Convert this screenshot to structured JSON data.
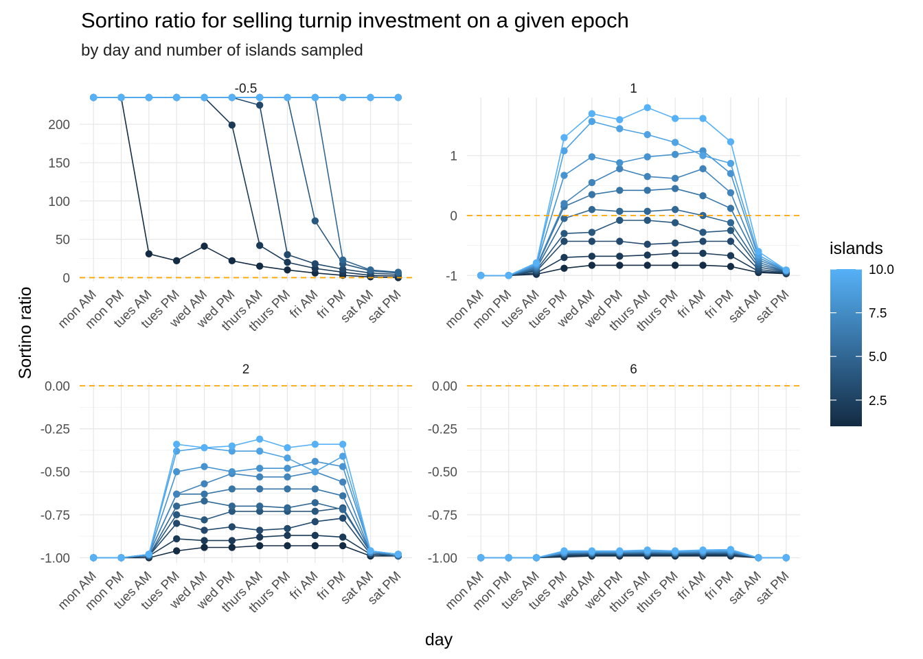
{
  "title": "Sortino ratio for selling turnip investment on a given epoch",
  "subtitle": "by day and number of islands sampled",
  "ylabel": "Sortino ratio",
  "xlabel": "day",
  "legend": {
    "title": "islands",
    "ticks": [
      "10.0",
      "7.5",
      "5.0",
      "2.5"
    ],
    "tick_values": [
      10,
      7.5,
      5,
      2.5
    ],
    "range": [
      1,
      10
    ],
    "color_low": "#132B43",
    "color_high": "#56B1F7",
    "placement": "right"
  },
  "reference_line": {
    "y": 0,
    "color": "#FFA500",
    "style": "dashed"
  },
  "chart_data": [
    {
      "type": "line",
      "panel": "-0.5",
      "ylim": [
        -5,
        235
      ],
      "yticks": [
        0,
        50,
        100,
        150,
        200
      ],
      "yticklabels": [
        "0",
        "50",
        "100",
        "150",
        "200"
      ],
      "categories": [
        "mon AM",
        "mon PM",
        "tues AM",
        "tues PM",
        "wed AM",
        "wed PM",
        "thurs AM",
        "thurs PM",
        "fri AM",
        "fri PM",
        "sat AM",
        "sat PM"
      ],
      "series": [
        {
          "islands": 1,
          "values": [
            235,
            235,
            31,
            22,
            41,
            22,
            15,
            10,
            6,
            3,
            1,
            0
          ]
        },
        {
          "islands": 2,
          "values": [
            235,
            235,
            235,
            235,
            235,
            199,
            42,
            20,
            12,
            7,
            3,
            2
          ]
        },
        {
          "islands": 3,
          "values": [
            235,
            235,
            235,
            235,
            235,
            235,
            225,
            30,
            18,
            11,
            6,
            4
          ]
        },
        {
          "islands": 4,
          "values": [
            235,
            235,
            235,
            235,
            235,
            235,
            235,
            235,
            74,
            18,
            9,
            6
          ]
        },
        {
          "islands": 5,
          "values": [
            235,
            235,
            235,
            235,
            235,
            235,
            235,
            235,
            235,
            23,
            10,
            7
          ]
        },
        {
          "islands": 6,
          "values": [
            235,
            235,
            235,
            235,
            235,
            235,
            235,
            235,
            235,
            235,
            235,
            235
          ]
        },
        {
          "islands": 7,
          "values": [
            235,
            235,
            235,
            235,
            235,
            235,
            235,
            235,
            235,
            235,
            235,
            235
          ]
        },
        {
          "islands": 8,
          "values": [
            235,
            235,
            235,
            235,
            235,
            235,
            235,
            235,
            235,
            235,
            235,
            235
          ]
        },
        {
          "islands": 9,
          "values": [
            235,
            235,
            235,
            235,
            235,
            235,
            235,
            235,
            235,
            235,
            235,
            235
          ]
        },
        {
          "islands": 10,
          "values": [
            235,
            235,
            235,
            235,
            235,
            235,
            235,
            235,
            235,
            235,
            235,
            235
          ]
        }
      ]
    },
    {
      "type": "line",
      "panel": "1",
      "ylim": [
        -1.1,
        1.97
      ],
      "yticks": [
        -1,
        0,
        1
      ],
      "yticklabels": [
        "-1",
        "0",
        "1"
      ],
      "categories": [
        "mon AM",
        "mon PM",
        "tues AM",
        "tues PM",
        "wed AM",
        "wed PM",
        "thurs AM",
        "thurs PM",
        "fri AM",
        "fri PM",
        "sat AM",
        "sat PM"
      ],
      "series": [
        {
          "islands": 1,
          "values": [
            -1,
            -1,
            -0.98,
            -0.88,
            -0.83,
            -0.83,
            -0.83,
            -0.83,
            -0.83,
            -0.85,
            -0.95,
            -0.97
          ]
        },
        {
          "islands": 2,
          "values": [
            -1,
            -1,
            -0.96,
            -0.7,
            -0.68,
            -0.68,
            -0.66,
            -0.63,
            -0.63,
            -0.67,
            -0.93,
            -0.96
          ]
        },
        {
          "islands": 3,
          "values": [
            -1,
            -1,
            -0.93,
            -0.43,
            -0.43,
            -0.43,
            -0.48,
            -0.46,
            -0.43,
            -0.43,
            -0.9,
            -0.95
          ]
        },
        {
          "islands": 4,
          "values": [
            -1,
            -1,
            -0.91,
            -0.3,
            -0.28,
            -0.08,
            -0.08,
            -0.12,
            -0.28,
            -0.25,
            -0.86,
            -0.94
          ]
        },
        {
          "islands": 5,
          "values": [
            -1,
            -1,
            -0.89,
            -0.05,
            0.1,
            0.07,
            0.07,
            0.1,
            0,
            -0.12,
            -0.82,
            -0.93
          ]
        },
        {
          "islands": 6,
          "values": [
            -1,
            -1,
            -0.87,
            0.15,
            0.35,
            0.42,
            0.42,
            0.45,
            0.33,
            0.12,
            -0.78,
            -0.93
          ]
        },
        {
          "islands": 7,
          "values": [
            -1,
            -1,
            -0.85,
            0.2,
            0.55,
            0.78,
            0.65,
            0.62,
            0.78,
            0.38,
            -0.74,
            -0.92
          ]
        },
        {
          "islands": 8,
          "values": [
            -1,
            -1,
            -0.83,
            0.67,
            0.98,
            0.88,
            0.98,
            1.02,
            1.08,
            0.7,
            -0.7,
            -0.92
          ]
        },
        {
          "islands": 9,
          "values": [
            -1,
            -1,
            -0.81,
            1.08,
            1.57,
            1.45,
            1.35,
            1.22,
            1.0,
            0.87,
            -0.66,
            -0.91
          ]
        },
        {
          "islands": 10,
          "values": [
            -1,
            -1,
            -0.79,
            1.3,
            1.7,
            1.6,
            1.8,
            1.62,
            1.62,
            1.23,
            -0.6,
            -0.91
          ]
        }
      ]
    },
    {
      "type": "line",
      "panel": "2",
      "ylim": [
        -1.03,
        0.02
      ],
      "yticks": [
        0,
        -0.25,
        -0.5,
        -0.75,
        -1
      ],
      "yticklabels": [
        "0.00",
        "-0.25",
        "-0.50",
        "-0.75",
        "-1.00"
      ],
      "categories": [
        "mon AM",
        "mon PM",
        "tues AM",
        "tues PM",
        "wed AM",
        "wed PM",
        "thurs AM",
        "thurs PM",
        "fri AM",
        "fri PM",
        "sat AM",
        "sat PM"
      ],
      "series": [
        {
          "islands": 1,
          "values": [
            -1,
            -1,
            -1,
            -0.96,
            -0.94,
            -0.94,
            -0.93,
            -0.93,
            -0.93,
            -0.93,
            -0.99,
            -0.99
          ]
        },
        {
          "islands": 2,
          "values": [
            -1,
            -1,
            -0.99,
            -0.89,
            -0.9,
            -0.9,
            -0.88,
            -0.87,
            -0.87,
            -0.88,
            -0.98,
            -0.99
          ]
        },
        {
          "islands": 3,
          "values": [
            -1,
            -1,
            -0.99,
            -0.8,
            -0.84,
            -0.82,
            -0.84,
            -0.83,
            -0.79,
            -0.77,
            -0.98,
            -0.99
          ]
        },
        {
          "islands": 4,
          "values": [
            -1,
            -1,
            -0.99,
            -0.75,
            -0.78,
            -0.73,
            -0.73,
            -0.73,
            -0.73,
            -0.71,
            -0.97,
            -0.99
          ]
        },
        {
          "islands": 5,
          "values": [
            -1,
            -1,
            -0.99,
            -0.7,
            -0.67,
            -0.7,
            -0.7,
            -0.71,
            -0.68,
            -0.72,
            -0.97,
            -0.99
          ]
        },
        {
          "islands": 6,
          "values": [
            -1,
            -1,
            -0.98,
            -0.63,
            -0.63,
            -0.6,
            -0.6,
            -0.6,
            -0.6,
            -0.64,
            -0.97,
            -0.98
          ]
        },
        {
          "islands": 7,
          "values": [
            -1,
            -1,
            -0.98,
            -0.63,
            -0.57,
            -0.51,
            -0.53,
            -0.53,
            -0.5,
            -0.56,
            -0.97,
            -0.98
          ]
        },
        {
          "islands": 8,
          "values": [
            -1,
            -1,
            -0.98,
            -0.5,
            -0.47,
            -0.5,
            -0.48,
            -0.48,
            -0.44,
            -0.47,
            -0.96,
            -0.98
          ]
        },
        {
          "islands": 9,
          "values": [
            -1,
            -1,
            -0.98,
            -0.38,
            -0.36,
            -0.38,
            -0.38,
            -0.42,
            -0.5,
            -0.41,
            -0.96,
            -0.98
          ]
        },
        {
          "islands": 10,
          "values": [
            -1,
            -1,
            -0.98,
            -0.34,
            -0.36,
            -0.35,
            -0.31,
            -0.36,
            -0.34,
            -0.34,
            -0.96,
            -0.98
          ]
        }
      ]
    },
    {
      "type": "line",
      "panel": "6",
      "ylim": [
        -1.03,
        0.02
      ],
      "yticks": [
        0,
        -0.25,
        -0.5,
        -0.75,
        -1
      ],
      "yticklabels": [
        "0.00",
        "-0.25",
        "-0.50",
        "-0.75",
        "-1.00"
      ],
      "categories": [
        "mon AM",
        "mon PM",
        "tues AM",
        "tues PM",
        "wed AM",
        "wed PM",
        "thurs AM",
        "thurs PM",
        "fri AM",
        "fri PM",
        "sat AM",
        "sat PM"
      ],
      "series": [
        {
          "islands": 1,
          "values": [
            -1,
            -1,
            -1,
            -0.995,
            -0.99,
            -0.99,
            -0.99,
            -0.99,
            -0.99,
            -0.99,
            -1,
            -1
          ]
        },
        {
          "islands": 2,
          "values": [
            -1,
            -1,
            -1,
            -0.99,
            -0.985,
            -0.985,
            -0.985,
            -0.985,
            -0.985,
            -0.985,
            -1,
            -1
          ]
        },
        {
          "islands": 3,
          "values": [
            -1,
            -1,
            -1,
            -0.985,
            -0.98,
            -0.98,
            -0.98,
            -0.98,
            -0.98,
            -0.98,
            -1,
            -1
          ]
        },
        {
          "islands": 4,
          "values": [
            -1,
            -1,
            -1,
            -0.98,
            -0.978,
            -0.978,
            -0.975,
            -0.978,
            -0.975,
            -0.975,
            -1,
            -1
          ]
        },
        {
          "islands": 5,
          "values": [
            -1,
            -1,
            -1,
            -0.978,
            -0.975,
            -0.975,
            -0.972,
            -0.975,
            -0.972,
            -0.972,
            -1,
            -1
          ]
        },
        {
          "islands": 6,
          "values": [
            -1,
            -1,
            -1,
            -0.975,
            -0.972,
            -0.972,
            -0.97,
            -0.972,
            -0.97,
            -0.97,
            -1,
            -1
          ]
        },
        {
          "islands": 7,
          "values": [
            -1,
            -1,
            -1,
            -0.972,
            -0.97,
            -0.97,
            -0.967,
            -0.97,
            -0.967,
            -0.967,
            -1,
            -1
          ]
        },
        {
          "islands": 8,
          "values": [
            -1,
            -1,
            -1,
            -0.97,
            -0.967,
            -0.967,
            -0.964,
            -0.967,
            -0.964,
            -0.962,
            -1,
            -1
          ]
        },
        {
          "islands": 9,
          "values": [
            -1,
            -1,
            -1,
            -0.966,
            -0.964,
            -0.964,
            -0.96,
            -0.964,
            -0.96,
            -0.958,
            -1,
            -1
          ]
        },
        {
          "islands": 10,
          "values": [
            -1,
            -1,
            -1,
            -0.96,
            -0.96,
            -0.96,
            -0.955,
            -0.96,
            -0.955,
            -0.952,
            -1,
            -1
          ]
        }
      ]
    }
  ]
}
